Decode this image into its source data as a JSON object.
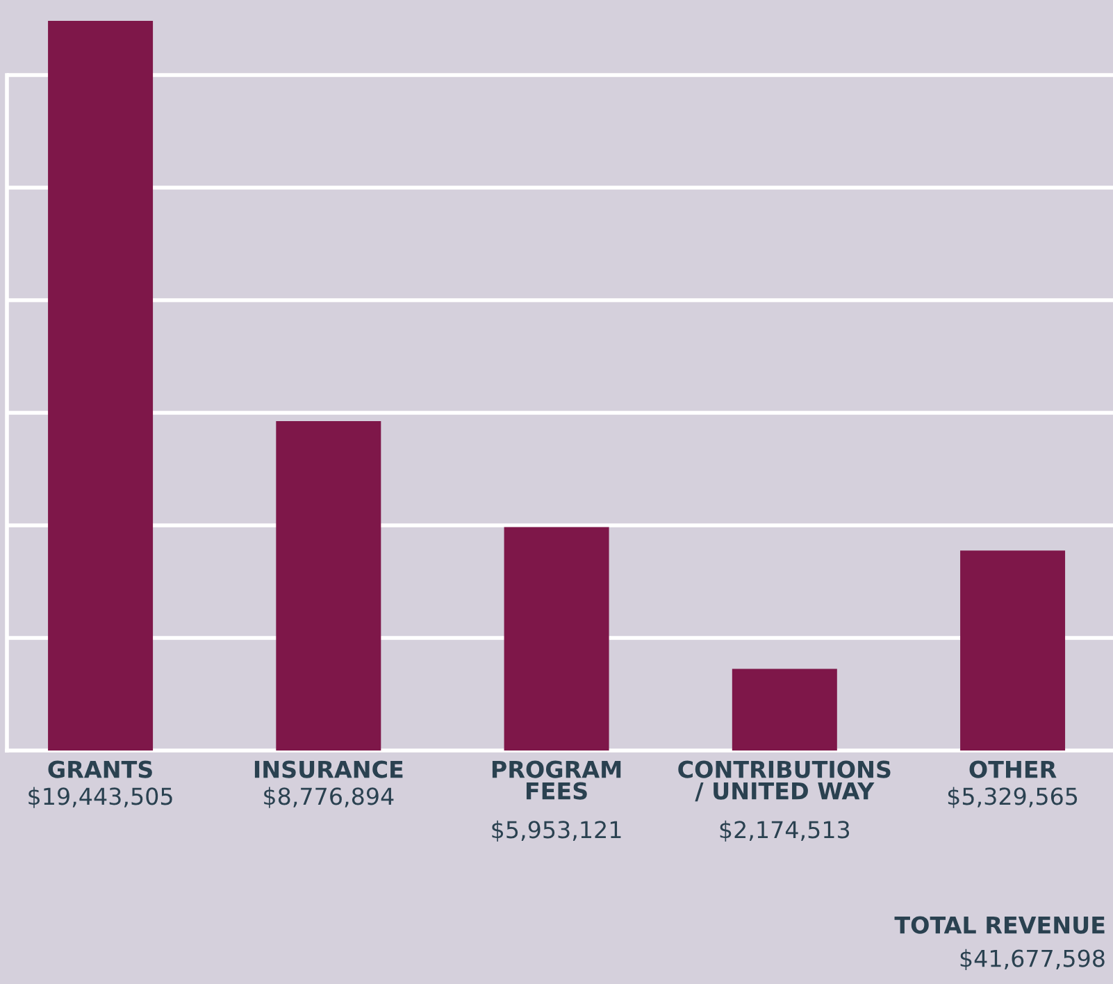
{
  "chart_data": {
    "type": "bar",
    "categories": [
      "GRANTS",
      "INSURANCE",
      "PROGRAM\nFEES",
      "CONTRIBUTIONS\n/ UNITED WAY",
      "OTHER"
    ],
    "values": [
      19443505,
      8776894,
      5953121,
      2174513,
      5329565
    ],
    "value_labels": [
      "$19,443,505",
      "$8,776,894",
      "$5,953,121",
      "$2,174,513",
      "$5,329,565"
    ],
    "color": "#7e1749",
    "ylim": [
      0,
      20000000
    ],
    "yticks": [
      {
        "value": 3000000,
        "label": null
      },
      {
        "value": 6000000,
        "label": null
      },
      {
        "value": 9000000,
        "label": null
      },
      {
        "value": 12000000,
        "label": null
      },
      {
        "value": 15000000,
        "label": null
      },
      {
        "value": 18000000,
        "label": null
      }
    ],
    "grid": "y",
    "tick_labels": "x",
    "annotations": [
      "TOTAL REVENUE",
      "$41,677,598"
    ]
  }
}
